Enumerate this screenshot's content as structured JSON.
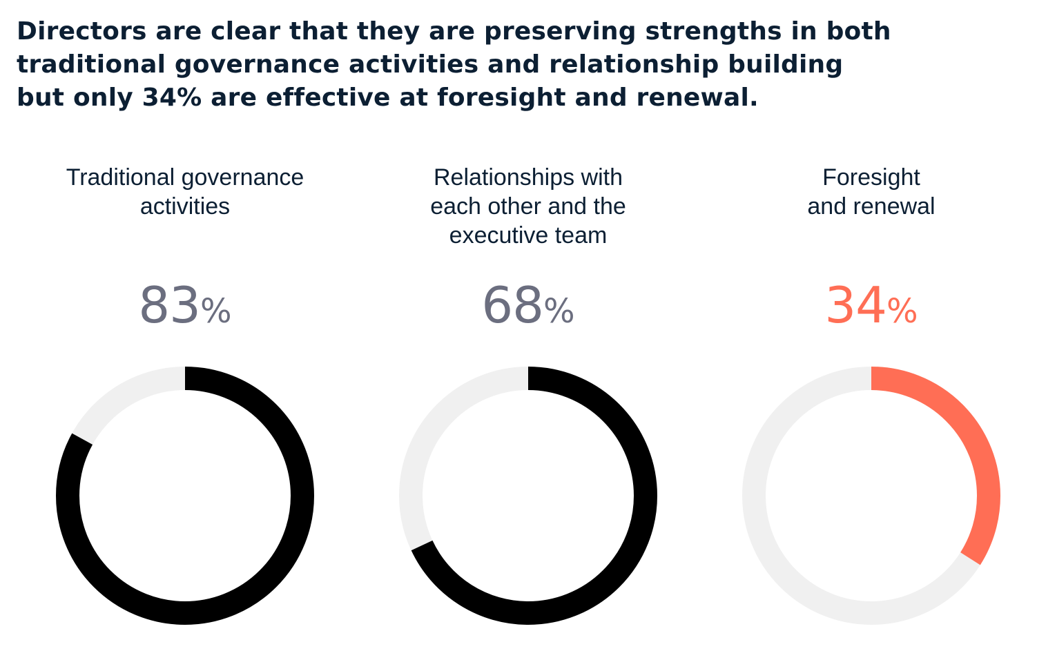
{
  "headline": {
    "lines": [
      "Directors are clear that they are preserving strengths in both",
      "traditional governance activities and relationship building",
      "but only 34% are effective at foresight and renewal."
    ]
  },
  "colors": {
    "headline": "#0c1f33",
    "value_default": "#6b6e7f",
    "value_highlight": "#ff6e55",
    "arc_default": "#000000",
    "arc_highlight": "#ff6e55",
    "track": "#f0f0f0"
  },
  "chart_data": [
    {
      "type": "pie",
      "label_lines": [
        "Traditional governance",
        "activities"
      ],
      "value": 83,
      "value_text": "83",
      "unit": "%",
      "highlight": false
    },
    {
      "type": "pie",
      "label_lines": [
        "Relationships with",
        "each other and the",
        "executive team"
      ],
      "value": 68,
      "value_text": "68",
      "unit": "%",
      "highlight": false
    },
    {
      "type": "pie",
      "label_lines": [
        "Foresight",
        "and renewal"
      ],
      "value": 34,
      "value_text": "34",
      "unit": "%",
      "highlight": true
    }
  ]
}
